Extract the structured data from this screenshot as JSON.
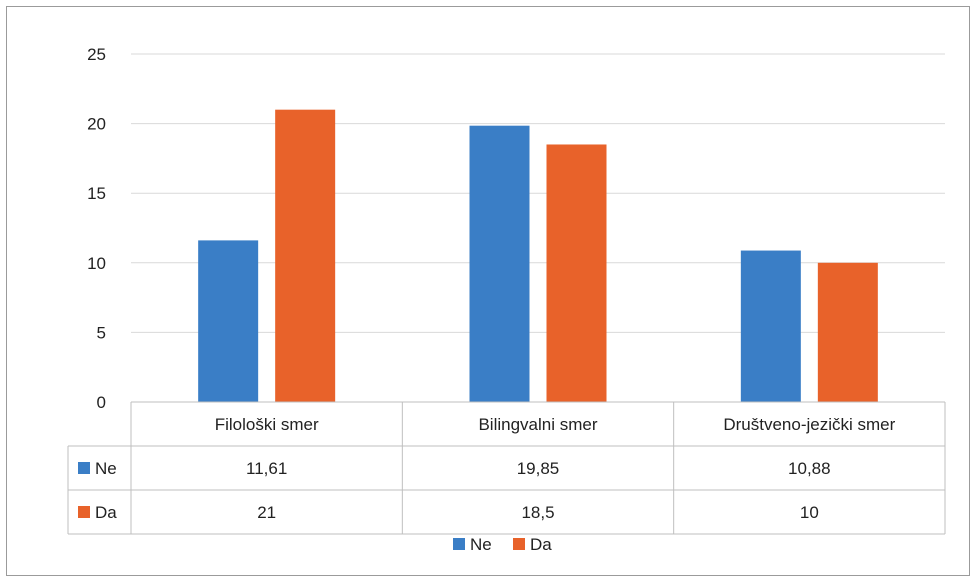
{
  "chart_data": {
    "type": "bar",
    "categories": [
      "Filološki smer",
      "Bilingvalni smer",
      "Društveno-jezički smer"
    ],
    "series": [
      {
        "name": "Ne",
        "values": [
          11.61,
          19.85,
          10.88
        ],
        "labels": [
          "11,61",
          "19,85",
          "10,88"
        ],
        "color": "#3a7ec6"
      },
      {
        "name": "Da",
        "values": [
          21,
          18.5,
          10
        ],
        "labels": [
          "21",
          "18,5",
          "10"
        ],
        "color": "#e8622a"
      }
    ],
    "ylim": [
      0,
      25
    ],
    "yticks": [
      0,
      5,
      10,
      15,
      20,
      25
    ],
    "grid": true,
    "legend": "bottom",
    "data_table": true,
    "title": "",
    "xlabel": "",
    "ylabel": ""
  }
}
